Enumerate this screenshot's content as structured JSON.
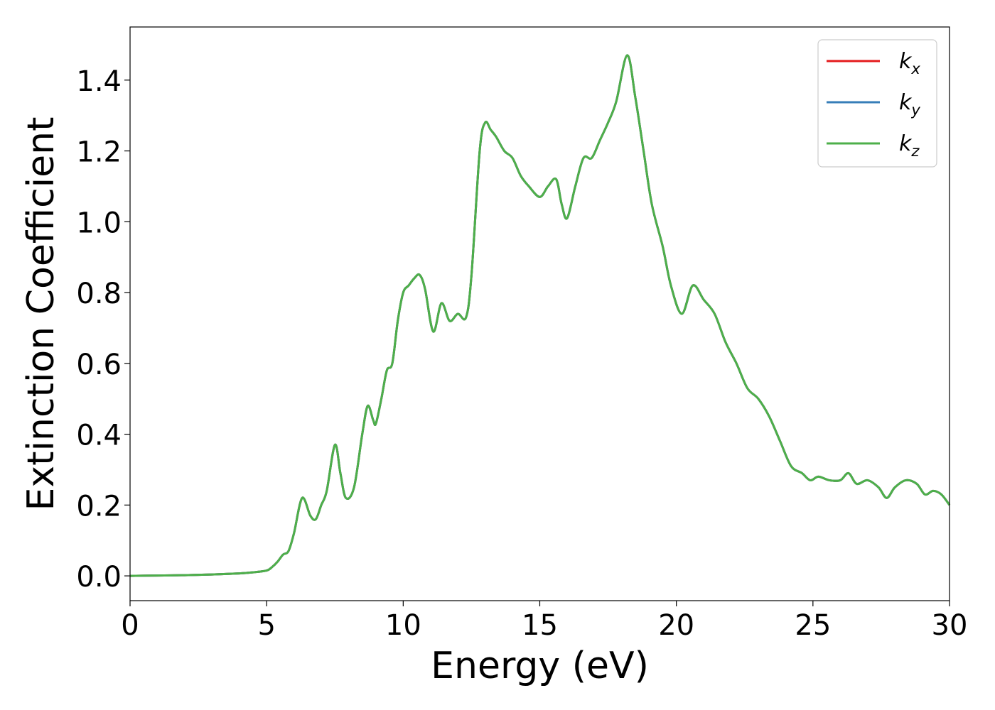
{
  "chart_data": {
    "type": "line",
    "title": "",
    "xlabel": "Energy (eV)",
    "ylabel": "Extinction Coefficient",
    "xlim": [
      0,
      30
    ],
    "ylim": [
      -0.07,
      1.55
    ],
    "xticks": [
      0,
      5,
      10,
      15,
      20,
      25,
      30
    ],
    "xtick_labels": [
      "0",
      "5",
      "10",
      "15",
      "20",
      "25",
      "30"
    ],
    "yticks": [
      0.0,
      0.2,
      0.4,
      0.6,
      0.8,
      1.0,
      1.2,
      1.4
    ],
    "ytick_labels": [
      "0.0",
      "0.2",
      "0.4",
      "0.6",
      "0.8",
      "1.0",
      "1.2",
      "1.4"
    ],
    "grid": false,
    "legend_position": "top-right",
    "x": [
      0,
      1,
      2,
      3,
      4,
      4.5,
      5,
      5.2,
      5.4,
      5.6,
      5.8,
      6.0,
      6.3,
      6.6,
      6.8,
      7.0,
      7.2,
      7.5,
      7.7,
      7.9,
      8.2,
      8.5,
      8.7,
      8.9,
      9.0,
      9.2,
      9.4,
      9.6,
      9.8,
      10.0,
      10.2,
      10.4,
      10.6,
      10.8,
      11.1,
      11.4,
      11.7,
      12.0,
      12.3,
      12.5,
      12.8,
      13.0,
      13.2,
      13.4,
      13.7,
      14.0,
      14.3,
      14.6,
      15.0,
      15.3,
      15.6,
      15.8,
      16.0,
      16.3,
      16.6,
      16.9,
      17.2,
      17.5,
      17.8,
      18.2,
      18.5,
      18.8,
      19.1,
      19.5,
      19.8,
      20.2,
      20.6,
      21.0,
      21.4,
      21.8,
      22.2,
      22.6,
      23.0,
      23.4,
      23.8,
      24.2,
      24.6,
      24.9,
      25.2,
      25.6,
      26.0,
      26.3,
      26.6,
      27.0,
      27.4,
      27.7,
      28.0,
      28.4,
      28.8,
      29.1,
      29.4,
      29.7,
      30.0
    ],
    "series": [
      {
        "name": "k_x",
        "color": "#e41a1c",
        "values": [
          0.0,
          0.001,
          0.002,
          0.004,
          0.007,
          0.01,
          0.015,
          0.025,
          0.04,
          0.06,
          0.07,
          0.12,
          0.22,
          0.17,
          0.16,
          0.2,
          0.24,
          0.37,
          0.29,
          0.22,
          0.25,
          0.4,
          0.48,
          0.44,
          0.43,
          0.5,
          0.58,
          0.6,
          0.72,
          0.8,
          0.82,
          0.84,
          0.85,
          0.81,
          0.69,
          0.77,
          0.72,
          0.74,
          0.73,
          0.85,
          1.2,
          1.28,
          1.26,
          1.24,
          1.2,
          1.18,
          1.13,
          1.1,
          1.07,
          1.1,
          1.12,
          1.05,
          1.01,
          1.1,
          1.18,
          1.18,
          1.23,
          1.28,
          1.34,
          1.47,
          1.35,
          1.2,
          1.05,
          0.93,
          0.82,
          0.74,
          0.82,
          0.78,
          0.74,
          0.66,
          0.6,
          0.53,
          0.5,
          0.45,
          0.38,
          0.31,
          0.29,
          0.27,
          0.28,
          0.27,
          0.27,
          0.29,
          0.26,
          0.27,
          0.25,
          0.22,
          0.25,
          0.27,
          0.26,
          0.23,
          0.24,
          0.23,
          0.2
        ]
      },
      {
        "name": "k_y",
        "color": "#377eb8",
        "values": [
          0.0,
          0.001,
          0.002,
          0.004,
          0.007,
          0.01,
          0.015,
          0.025,
          0.04,
          0.06,
          0.07,
          0.12,
          0.22,
          0.17,
          0.16,
          0.2,
          0.24,
          0.37,
          0.29,
          0.22,
          0.25,
          0.4,
          0.48,
          0.44,
          0.43,
          0.5,
          0.58,
          0.6,
          0.72,
          0.8,
          0.82,
          0.84,
          0.85,
          0.81,
          0.69,
          0.77,
          0.72,
          0.74,
          0.73,
          0.85,
          1.2,
          1.28,
          1.26,
          1.24,
          1.2,
          1.18,
          1.13,
          1.1,
          1.07,
          1.1,
          1.12,
          1.05,
          1.01,
          1.1,
          1.18,
          1.18,
          1.23,
          1.28,
          1.34,
          1.47,
          1.35,
          1.2,
          1.05,
          0.93,
          0.82,
          0.74,
          0.82,
          0.78,
          0.74,
          0.66,
          0.6,
          0.53,
          0.5,
          0.45,
          0.38,
          0.31,
          0.29,
          0.27,
          0.28,
          0.27,
          0.27,
          0.29,
          0.26,
          0.27,
          0.25,
          0.22,
          0.25,
          0.27,
          0.26,
          0.23,
          0.24,
          0.23,
          0.2
        ]
      },
      {
        "name": "k_z",
        "color": "#4daf4a",
        "values": [
          0.0,
          0.001,
          0.002,
          0.004,
          0.007,
          0.01,
          0.015,
          0.025,
          0.04,
          0.06,
          0.07,
          0.12,
          0.22,
          0.17,
          0.16,
          0.2,
          0.24,
          0.37,
          0.29,
          0.22,
          0.25,
          0.4,
          0.48,
          0.44,
          0.43,
          0.5,
          0.58,
          0.6,
          0.72,
          0.8,
          0.82,
          0.84,
          0.85,
          0.81,
          0.69,
          0.77,
          0.72,
          0.74,
          0.73,
          0.85,
          1.2,
          1.28,
          1.26,
          1.24,
          1.2,
          1.18,
          1.13,
          1.1,
          1.07,
          1.1,
          1.12,
          1.05,
          1.01,
          1.1,
          1.18,
          1.18,
          1.23,
          1.28,
          1.34,
          1.47,
          1.35,
          1.2,
          1.05,
          0.93,
          0.82,
          0.74,
          0.82,
          0.78,
          0.74,
          0.66,
          0.6,
          0.53,
          0.5,
          0.45,
          0.38,
          0.31,
          0.29,
          0.27,
          0.28,
          0.27,
          0.27,
          0.29,
          0.26,
          0.27,
          0.25,
          0.22,
          0.25,
          0.27,
          0.26,
          0.23,
          0.24,
          0.23,
          0.2
        ]
      }
    ],
    "legend": [
      {
        "base": "k",
        "sub": "x",
        "color": "#e41a1c"
      },
      {
        "base": "k",
        "sub": "y",
        "color": "#377eb8"
      },
      {
        "base": "k",
        "sub": "z",
        "color": "#4daf4a"
      }
    ]
  }
}
